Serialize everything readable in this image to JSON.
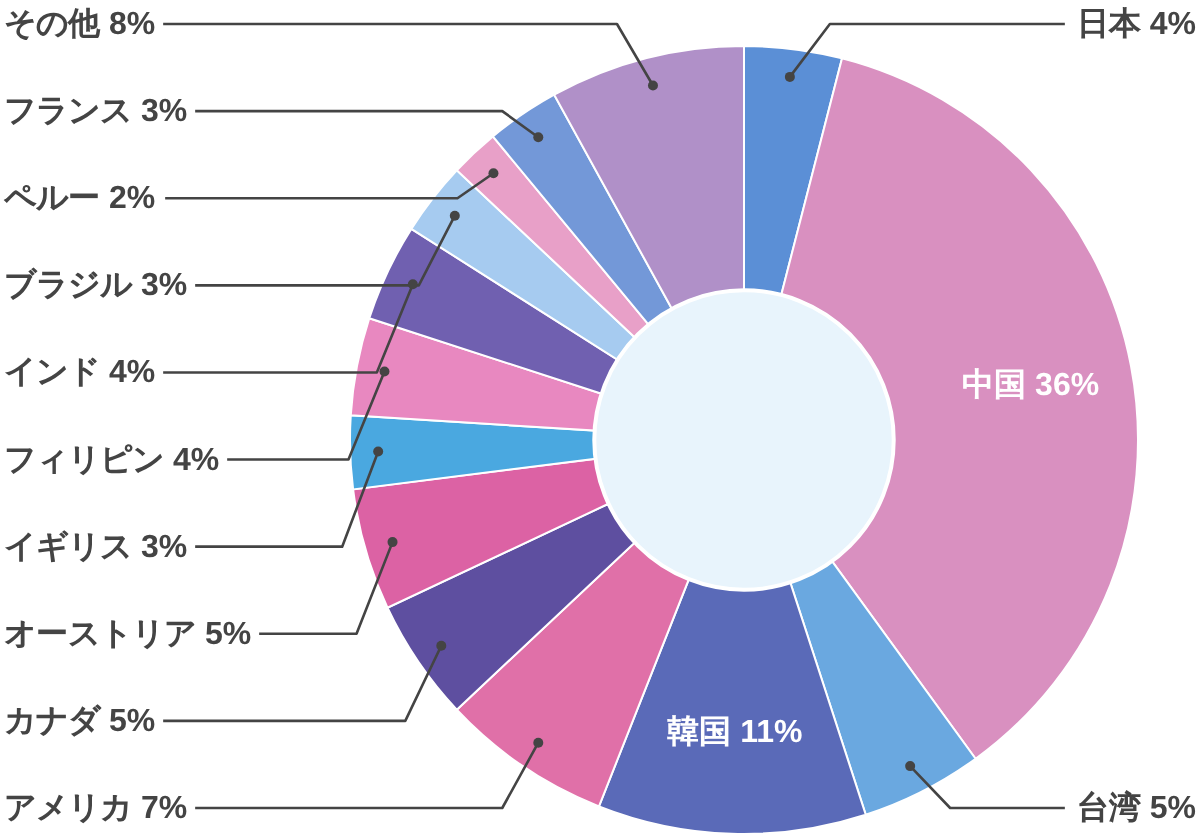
{
  "chart_data": {
    "type": "donut",
    "categories": [
      "日本",
      "中国",
      "台湾",
      "韓国",
      "アメリカ",
      "カナダ",
      "オーストリア",
      "イギリス",
      "フィリピン",
      "インド",
      "ブラジル",
      "ペルー",
      "フランス",
      "その他"
    ],
    "values": [
      4,
      36,
      5,
      11,
      7,
      5,
      5,
      3,
      4,
      4,
      3,
      2,
      3,
      8
    ],
    "colors": [
      "#5b8fd6",
      "#d990c0",
      "#6aa8e0",
      "#5a6ab8",
      "#e070a8",
      "#5e4fa0",
      "#dc62a4",
      "#4aa8e0",
      "#e888c0",
      "#7060b0",
      "#a6cbf0",
      "#e8a0c8",
      "#7398d8",
      "#b090c8"
    ],
    "value_labels": [
      "4%",
      "36%",
      "5%",
      "11%",
      "7%",
      "5%",
      "5%",
      "3%",
      "4%",
      "4%",
      "3%",
      "2%",
      "3%",
      "8%"
    ]
  }
}
